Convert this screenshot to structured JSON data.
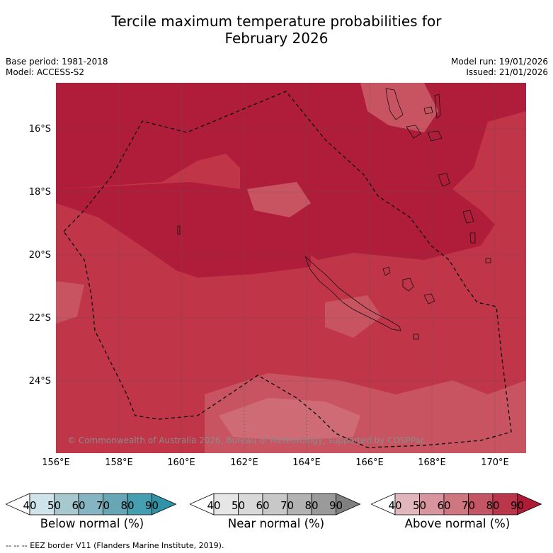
{
  "title_line1": "Tercile maximum temperature probabilities for",
  "title_line2": "February 2026",
  "base_period": "Base period: 1981-2018",
  "model": "Model: ACCESS-S2",
  "model_run": "Model run: 19/01/2026",
  "issued": "Issued: 21/01/2026",
  "copyright": "© Commonwealth of Australia 2026, Bureau of Meteorology, supported by COSPPac",
  "latitudes": [
    "16°S",
    "18°S",
    "20°S",
    "22°S",
    "24°S"
  ],
  "longitudes": [
    "156°E",
    "158°E",
    "160°E",
    "162°E",
    "164°E",
    "166°E",
    "168°E",
    "170°E"
  ],
  "colorbars": [
    {
      "label": "Below normal (%)",
      "ticks": [
        "40",
        "50",
        "60",
        "70",
        "80",
        "90"
      ],
      "colors": [
        "#ffffff",
        "#cfe4ea",
        "#a8c8cf",
        "#85b5c2",
        "#66a6b5",
        "#459fb0",
        "#2f92a7"
      ]
    },
    {
      "label": "Near normal (%)",
      "ticks": [
        "40",
        "50",
        "60",
        "70",
        "80",
        "90"
      ],
      "colors": [
        "#ffffff",
        "#e6e6e6",
        "#d9d9d9",
        "#c8c8c8",
        "#b2b2b2",
        "#9a9a9a",
        "#7f7f7f"
      ]
    },
    {
      "label": "Above normal (%)",
      "ticks": [
        "40",
        "50",
        "60",
        "70",
        "80",
        "90"
      ],
      "colors": [
        "#ffffff",
        "#e2b6bd",
        "#d8959d",
        "#cf7780",
        "#c45564",
        "#ba364a",
        "#af1a37"
      ]
    }
  ],
  "footer": "--  --  -- EEZ border V11 (Flanders Marine Institute, 2019).",
  "map_colors": {
    "p80": "#b01d3a",
    "p70": "#c13548",
    "p60": "#c95461",
    "p50": "#d48790"
  }
}
